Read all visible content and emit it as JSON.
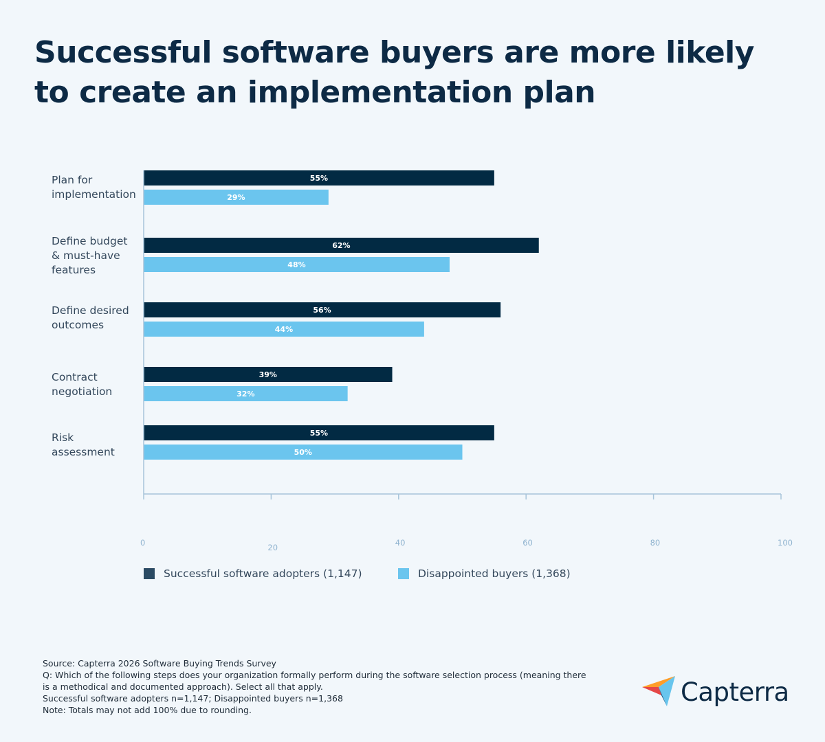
{
  "title": {
    "line1": "Successful software buyers are more likely",
    "line2": "to create an implementation plan"
  },
  "chart_data": {
    "type": "bar",
    "orientation": "horizontal",
    "categories": [
      [
        "Plan for",
        "implementation"
      ],
      [
        "Define budget",
        "& must-have",
        "features"
      ],
      [
        "Define desired",
        "outcomes"
      ],
      [
        "Contract",
        "negotiation"
      ],
      [
        "Risk",
        "assessment"
      ]
    ],
    "series": [
      {
        "name": "Successful software adopters (1,147)",
        "color": "#022a43",
        "values": [
          55,
          62,
          56,
          39,
          55
        ],
        "labels": [
          "55%",
          "62%",
          "56%",
          "39%",
          "55%"
        ]
      },
      {
        "name": "Disappointed buyers (1,368)",
        "color": "#6bc5ee",
        "values": [
          29,
          48,
          44,
          32,
          50
        ],
        "labels": [
          "29%",
          "48%",
          "44%",
          "32%",
          "50%"
        ]
      }
    ],
    "xlim": [
      0,
      100
    ],
    "xticks": [
      0,
      20,
      40,
      60,
      80,
      100
    ],
    "xtick_labels": [
      "0",
      "20",
      "40",
      "60",
      "80",
      "100"
    ],
    "grid": false,
    "legend_position": "bottom-left"
  },
  "legend": {
    "items": [
      {
        "label": "Successful software adopters (1,147)",
        "color": "#2a4a63"
      },
      {
        "label": "Disappointed buyers (1,368)",
        "color": "#6bc5ee"
      }
    ]
  },
  "source": {
    "line1": "Source: Capterra 2026 Software Buying Trends Survey",
    "line2": "Q: Which of the following steps does your organization formally perform during the software selection process (meaning there",
    "line3": "is a methodical and documented approach). Select all that apply.",
    "line4": "Successful software adopters n=1,147; Disappointed buyers n=1,368",
    "line5": "Note: Totals may not add 100% due to rounding."
  },
  "logo": {
    "text": "Capterra",
    "icon": "capterra-arrow-icon",
    "colors": [
      "#ff9d28",
      "#68c5ed",
      "#044d80",
      "#e54747"
    ]
  }
}
